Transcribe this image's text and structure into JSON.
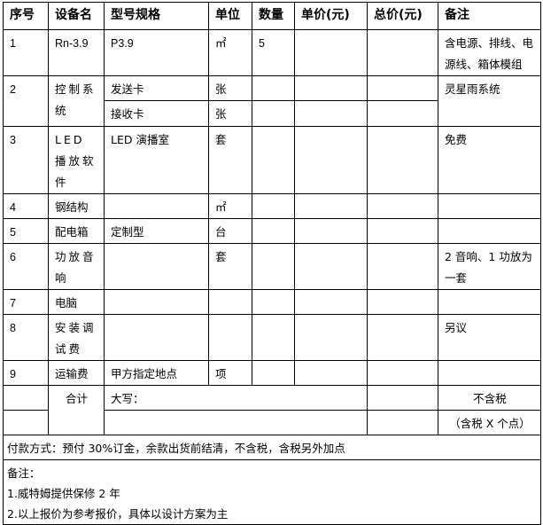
{
  "headers": [
    "序号",
    "设备名",
    "型号规格",
    "单位",
    "数量",
    "单价(元)",
    "总价(元)",
    "备注"
  ],
  "rows": [
    {
      "no": "1",
      "name": "Rn-3.9",
      "spec": "P3.9",
      "unit": "㎡",
      "qty": "5",
      "remark": "含电源、排线、电源线、箱体模组"
    },
    {
      "no": "2",
      "name": "控制系统",
      "sub": [
        {
          "spec": "发送卡",
          "unit": "张"
        },
        {
          "spec": "接收卡",
          "unit": "张"
        }
      ],
      "remark": "灵星雨系统"
    },
    {
      "no": "3",
      "name": "LED 播放软件",
      "spec": "LED 演播室",
      "unit": "套",
      "qty": "",
      "remark": "免费"
    },
    {
      "no": "4",
      "name": "钢结构",
      "spec": "",
      "unit": "㎡",
      "qty": "",
      "remark": ""
    },
    {
      "no": "5",
      "name": "配电箱",
      "spec": "定制型",
      "unit": "台",
      "qty": "",
      "remark": ""
    },
    {
      "no": "6",
      "name": "功放音响",
      "spec": "",
      "unit": "套",
      "qty": "",
      "remark": "2 音响、1 功放为一套"
    },
    {
      "no": "7",
      "name": "电脑",
      "spec": "",
      "unit": "",
      "qty": "",
      "remark": ""
    },
    {
      "no": "8",
      "name": "安装调试费",
      "spec": "",
      "unit": "",
      "qty": "",
      "remark": "另议"
    },
    {
      "no": "9",
      "name": "运输费",
      "spec": "甲方指定地点",
      "unit": "项",
      "qty": "",
      "remark": ""
    }
  ],
  "total": {
    "label": "合计",
    "uppercase_label": "大写：",
    "remark_excl_tax": "不含税",
    "remark_incl_tax": "（含税 X 个点）"
  },
  "payment": "付款方式：预付 30%订金，余款出货前结清，不含税，含税另外加点",
  "notes": {
    "title": "备注：",
    "items": [
      "1.威特姆提供保修 2 年",
      "2.以上报价为参考报价，具体以设计方案为主"
    ]
  }
}
